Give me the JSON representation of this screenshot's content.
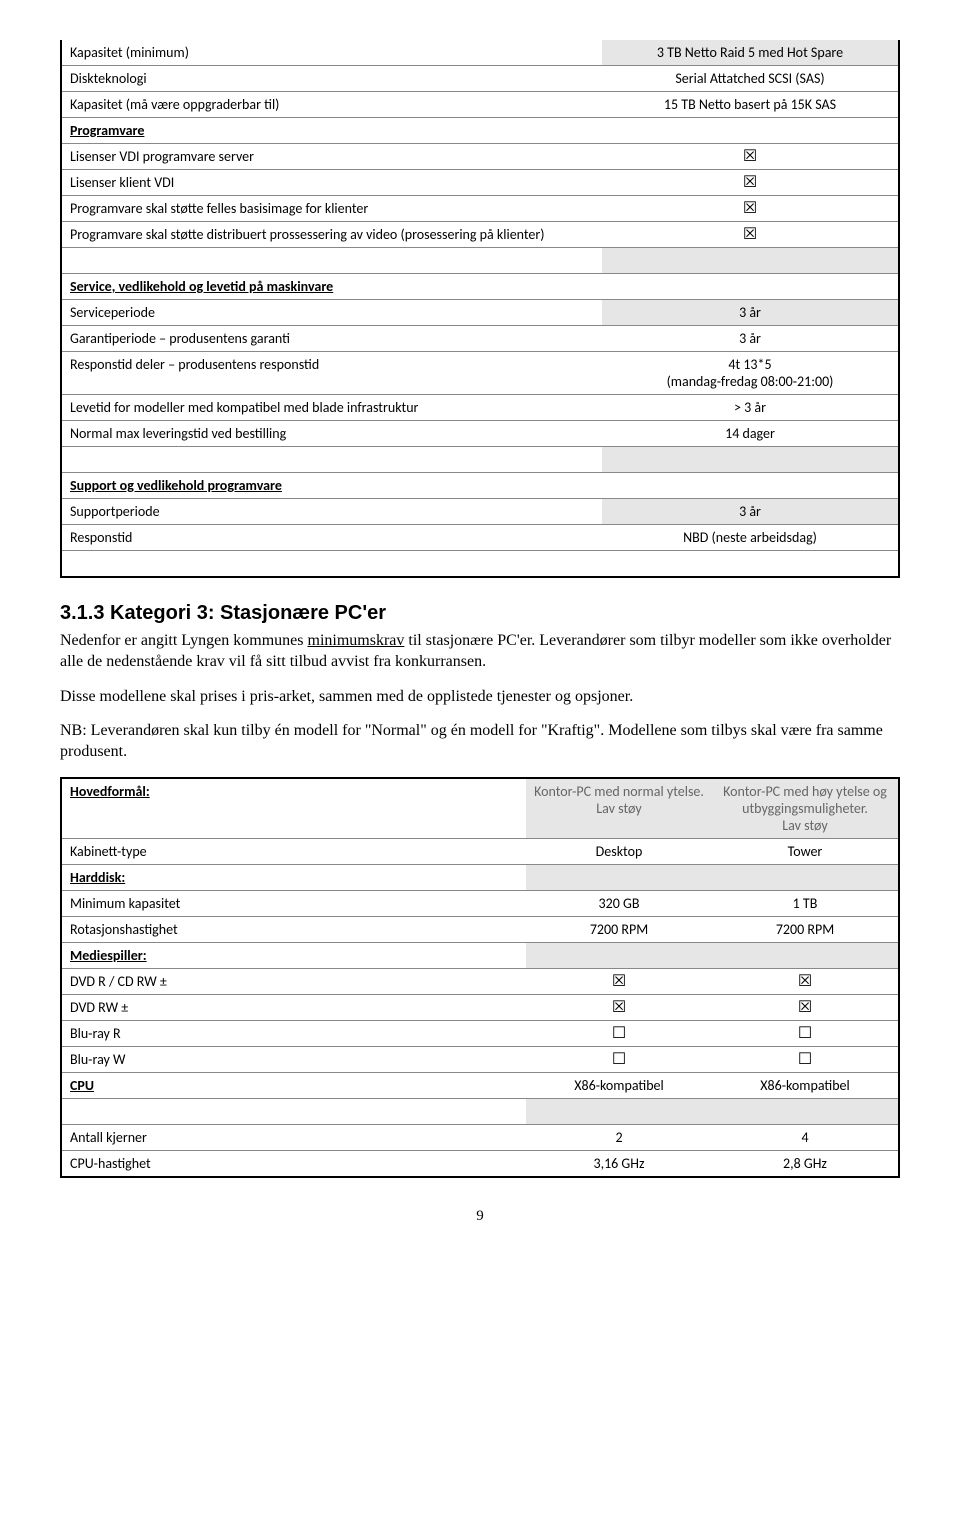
{
  "table1": {
    "rows": [
      {
        "key": "Kapasitet (minimum)",
        "val": "3 TB Netto Raid 5 med Hot Spare",
        "shadedVal": true
      },
      {
        "key": "Diskteknologi",
        "val": "Serial Attatched SCSI (SAS)"
      },
      {
        "key": "Kapasitet (må være oppgraderbar til)",
        "val": "15 TB Netto basert på 15K SAS"
      },
      {
        "key": "Programvare",
        "keyClass": "b u",
        "val": ""
      },
      {
        "key": "Lisenser VDI programvare server",
        "val": "☒",
        "icon": true
      },
      {
        "key": "Lisenser klient VDI",
        "val": "☒",
        "icon": true
      },
      {
        "key": "Programvare skal støtte felles basisimage for klienter",
        "val": "☒",
        "icon": true
      },
      {
        "key": "Programvare skal støtte distribuert prossessering av video (prosessering på klienter)",
        "val": "☒",
        "icon": true
      },
      {
        "spacer": true,
        "shadedVal": true
      },
      {
        "key": "Service, vedlikehold og levetid på maskinvare",
        "keyClass": "b u",
        "val": ""
      },
      {
        "key": "Serviceperiode",
        "val": "3 år",
        "shadedVal": true
      },
      {
        "key": "Garantiperiode – produsentens garanti",
        "val": "3 år"
      },
      {
        "key": "Responstid deler – produsentens responstid",
        "val": "4t 13*5\n(mandag-fredag 08:00-21:00)"
      },
      {
        "key": "Levetid for modeller med kompatibel med blade infrastruktur",
        "val": "> 3 år"
      },
      {
        "key": "Normal max leveringstid ved bestilling",
        "val": "14 dager"
      },
      {
        "spacer": true,
        "shadedVal": true
      },
      {
        "key": "Support og vedlikehold programvare",
        "keyClass": "b u",
        "val": ""
      },
      {
        "key": "Supportperiode",
        "val": "3 år",
        "shadedVal": true
      },
      {
        "key": "Responstid",
        "val": "NBD (neste arbeidsdag)"
      },
      {
        "spacer": true
      }
    ]
  },
  "section": {
    "heading": "3.1.3 Kategori 3: Stasjonære PC'er",
    "p1a": "Nedenfor er angitt Lyngen kommunes ",
    "p1u": "minimumskrav",
    "p1b": " til stasjonære PC'er. Leverandører som tilbyr modeller som ikke overholder alle de nedenstående krav vil få sitt tilbud avvist fra konkurransen.",
    "p2": "Disse modellene skal prises i pris-arket, sammen med de opplistede tjenester og opsjoner.",
    "p3": "NB: Leverandøren skal kun tilby én modell for \"Normal\" og én modell for \"Kraftig\". Modellene som tilbys skal være fra samme produsent."
  },
  "table2": {
    "header": {
      "col0": "Hovedformål:",
      "col1": "Kontor-PC med normal ytelse.\nLav støy",
      "col2": "Kontor-PC med høy ytelse og utbyggingsmuligheter.\nLav støy"
    },
    "rows": [
      {
        "key": "Kabinett-type",
        "v1": "Desktop",
        "v2": "Tower"
      },
      {
        "key": "Harddisk:",
        "keyClass": "b u",
        "shadedRow": true,
        "v1": "",
        "v2": ""
      },
      {
        "key": "Minimum kapasitet",
        "v1": "320 GB",
        "v2": "1 TB"
      },
      {
        "key": "Rotasjonshastighet",
        "v1": "7200 RPM",
        "v2": "7200 RPM"
      },
      {
        "key": "Mediespiller:",
        "keyClass": "b u",
        "shadedRow": true,
        "v1": "",
        "v2": ""
      },
      {
        "key": "DVD R / CD RW ±",
        "v1": "☒",
        "v2": "☒",
        "icon": true
      },
      {
        "key": "DVD RW ±",
        "v1": "☒",
        "v2": "☒",
        "icon": true
      },
      {
        "key": "Blu-ray R",
        "v1": "☐",
        "v2": "☐",
        "icon": true
      },
      {
        "key": "Blu-ray W",
        "v1": "☐",
        "v2": "☐",
        "icon": true
      },
      {
        "key": "CPU",
        "keyClass": "b u",
        "v1": "X86-kompatibel",
        "v2": "X86-kompatibel"
      },
      {
        "spacer": true,
        "shadedRow": true
      },
      {
        "key": "Antall kjerner",
        "v1": "2",
        "v2": "4"
      },
      {
        "key": "CPU-hastighet",
        "v1": "3,16 GHz",
        "v2": "2,8 GHz"
      }
    ]
  },
  "pagenum": "9"
}
